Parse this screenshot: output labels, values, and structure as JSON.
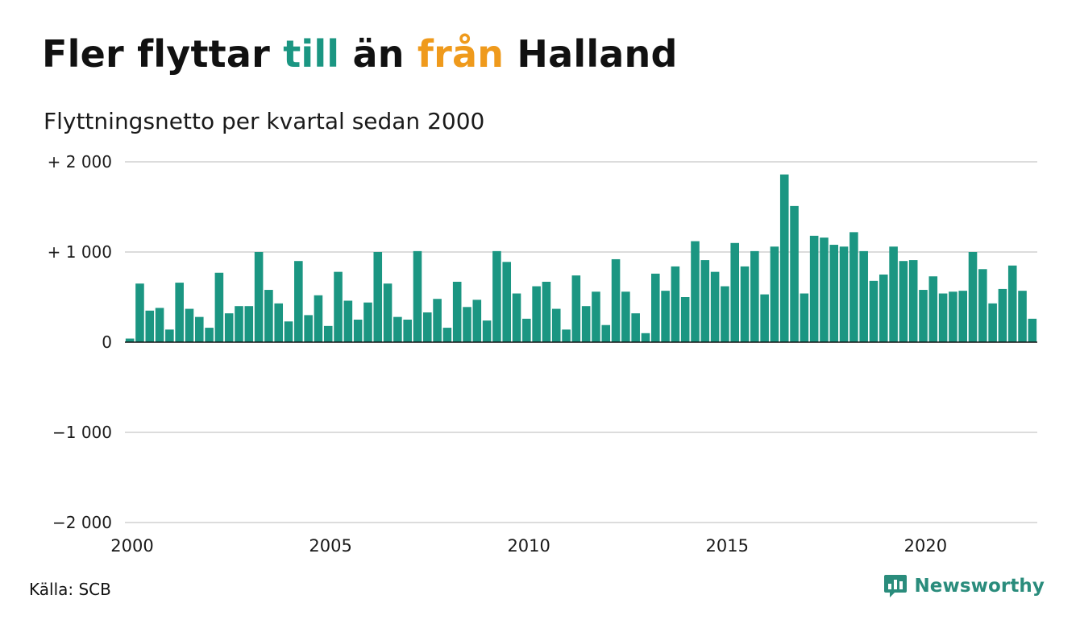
{
  "header": {
    "title_parts": [
      "Fler flyttar ",
      "till",
      " än ",
      "från",
      " Halland"
    ],
    "subtitle": "Flyttningsnetto per kvartal sedan 2000"
  },
  "colors": {
    "accent_teal": "#1b9682",
    "accent_orange": "#ef9a1c",
    "bar": "#1b9682",
    "grid": "#dcdcdc"
  },
  "footer": {
    "source": "Källa: SCB",
    "brand": "Newsworthy",
    "brand_icon": "newsworthy-logo-icon"
  },
  "chart_data": {
    "type": "bar",
    "title": "Fler flyttar till än från Halland",
    "subtitle": "Flyttningsnetto per kvartal sedan 2000",
    "ylim": [
      -2000,
      2000
    ],
    "yticks": [
      {
        "value": 2000,
        "label": "+ 2 000"
      },
      {
        "value": 1000,
        "label": "+ 1 000"
      },
      {
        "value": 0,
        "label": "0"
      },
      {
        "value": -1000,
        "label": "−1 000"
      },
      {
        "value": -2000,
        "label": "−2 000"
      }
    ],
    "xticks": [
      {
        "value": 2000,
        "label": "2000"
      },
      {
        "value": 2005,
        "label": "2005"
      },
      {
        "value": 2010,
        "label": "2010"
      },
      {
        "value": 2015,
        "label": "2015"
      },
      {
        "value": 2020,
        "label": "2020"
      }
    ],
    "xlim": [
      2000,
      2023
    ],
    "grid": true,
    "legend": "none",
    "start_year": 2000,
    "quarters_per_year": 4,
    "values": [
      40,
      650,
      350,
      380,
      140,
      660,
      370,
      280,
      160,
      770,
      320,
      400,
      400,
      1000,
      580,
      430,
      230,
      900,
      300,
      520,
      180,
      780,
      460,
      250,
      440,
      1000,
      650,
      280,
      250,
      1010,
      330,
      480,
      160,
      670,
      390,
      470,
      240,
      1010,
      890,
      540,
      260,
      620,
      670,
      370,
      140,
      740,
      400,
      560,
      190,
      920,
      560,
      320,
      100,
      760,
      570,
      840,
      500,
      1120,
      910,
      780,
      620,
      1100,
      840,
      1010,
      530,
      1060,
      1860,
      1510,
      540,
      1180,
      1160,
      1080,
      1060,
      1220,
      1010,
      680,
      750,
      1060,
      900,
      910,
      580,
      730,
      540,
      560,
      570,
      1000,
      810,
      430,
      590,
      850,
      570,
      260
    ]
  }
}
